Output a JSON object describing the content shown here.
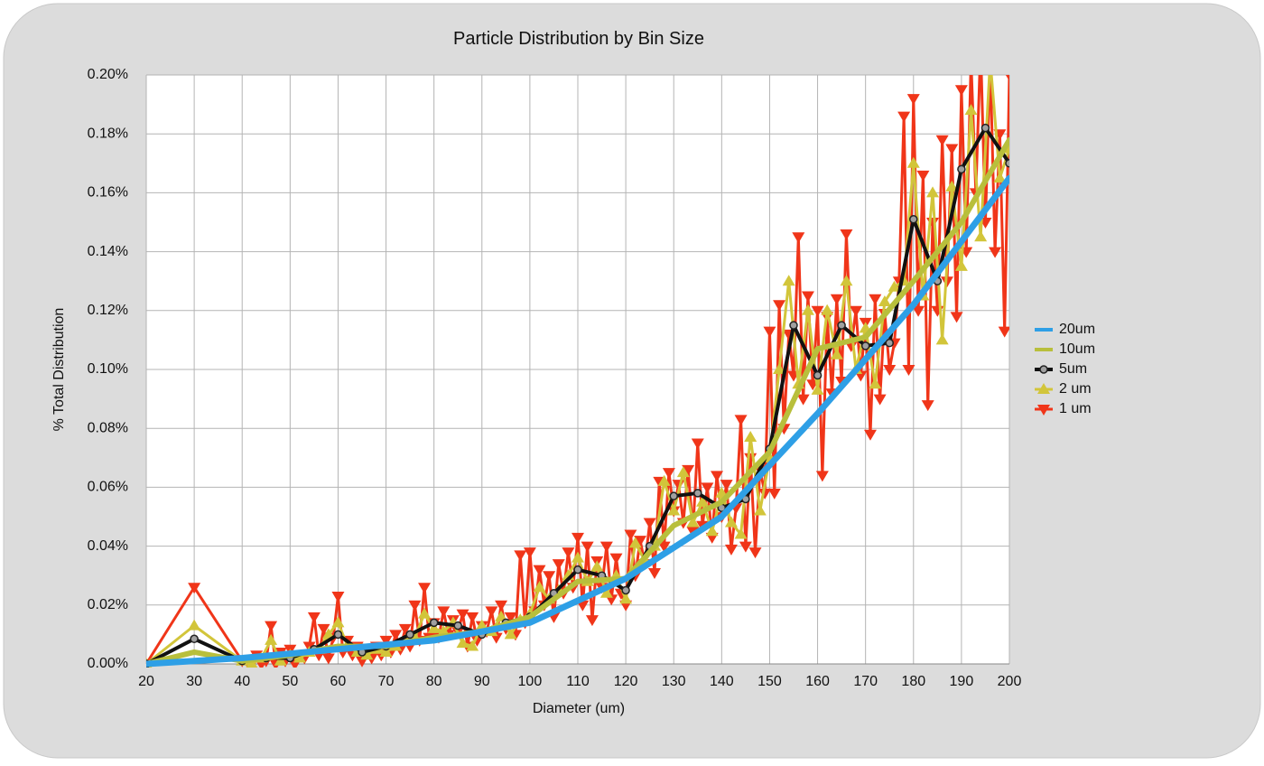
{
  "chart_data": {
    "type": "line",
    "title": "Particle Distribution by Bin Size",
    "x_label": "Diameter (um)",
    "y_label": "% Total Distribution",
    "xlim": [
      20,
      200
    ],
    "xticks": [
      20,
      30,
      40,
      50,
      60,
      70,
      80,
      90,
      100,
      110,
      120,
      130,
      140,
      150,
      160,
      170,
      180,
      190,
      200
    ],
    "ylim": [
      0,
      0.2
    ],
    "yticks": [
      {
        "value": 0,
        "label": "0.00%"
      },
      {
        "value": 0.02,
        "label": "0.02%"
      },
      {
        "value": 0.04,
        "label": "0.04%"
      },
      {
        "value": 0.06,
        "label": "0.06%"
      },
      {
        "value": 0.08,
        "label": "0.08%"
      },
      {
        "value": 0.1,
        "label": "0.10%"
      },
      {
        "value": 0.12,
        "label": "0.12%"
      },
      {
        "value": 0.14,
        "label": "0.14%"
      },
      {
        "value": 0.16,
        "label": "0.16%"
      },
      {
        "value": 0.18,
        "label": "0.18%"
      },
      {
        "value": 0.2,
        "label": "0.20%"
      }
    ],
    "grid": true,
    "legend": "right",
    "series": [
      {
        "name": "20um",
        "color": "#2e9fe6",
        "marker": "none",
        "line_width": 7,
        "x": [
          20,
          40,
          60,
          80,
          100,
          120,
          140,
          160,
          180,
          200
        ],
        "values": [
          0,
          0.002,
          0.005,
          0.008,
          0.014,
          0.029,
          0.05,
          0.085,
          0.122,
          0.165
        ]
      },
      {
        "name": "10um",
        "color": "#b8bf3c",
        "marker": "none",
        "line_width": 6,
        "x": [
          20,
          30,
          40,
          50,
          60,
          70,
          80,
          90,
          100,
          110,
          120,
          130,
          140,
          150,
          160,
          170,
          180,
          190,
          200
        ],
        "values": [
          0,
          0.004,
          0.001,
          0.003,
          0.006,
          0.006,
          0.009,
          0.011,
          0.016,
          0.028,
          0.029,
          0.047,
          0.055,
          0.072,
          0.107,
          0.111,
          0.13,
          0.15,
          0.178
        ]
      },
      {
        "name": "5um",
        "color": "#111111",
        "marker": "circle",
        "line_width": 4,
        "x": [
          20,
          30,
          40,
          45,
          50,
          55,
          60,
          65,
          70,
          75,
          80,
          85,
          90,
          95,
          100,
          105,
          110,
          115,
          120,
          125,
          130,
          135,
          140,
          145,
          150,
          155,
          160,
          165,
          170,
          175,
          180,
          185,
          190,
          195,
          200
        ],
        "values": [
          0,
          0.0085,
          0.001,
          0.002,
          0.002,
          0.005,
          0.01,
          0.004,
          0.006,
          0.01,
          0.014,
          0.013,
          0.01,
          0.014,
          0.016,
          0.024,
          0.032,
          0.03,
          0.025,
          0.04,
          0.057,
          0.058,
          0.053,
          0.056,
          0.073,
          0.115,
          0.098,
          0.115,
          0.108,
          0.109,
          0.151,
          0.13,
          0.168,
          0.182,
          0.17
        ]
      },
      {
        "name": "2 um",
        "color": "#d2c53a",
        "marker": "triangle-up",
        "line_width": 3,
        "x": [
          20,
          30,
          40,
          42,
          44,
          46,
          48,
          50,
          52,
          54,
          56,
          58,
          60,
          62,
          64,
          66,
          68,
          70,
          72,
          74,
          76,
          78,
          80,
          82,
          84,
          86,
          88,
          90,
          92,
          94,
          96,
          98,
          100,
          102,
          104,
          106,
          108,
          110,
          112,
          114,
          116,
          118,
          120,
          122,
          124,
          126,
          128,
          130,
          132,
          134,
          136,
          138,
          140,
          142,
          144,
          146,
          148,
          150,
          152,
          154,
          156,
          158,
          160,
          162,
          164,
          166,
          168,
          170,
          172,
          174,
          176,
          178,
          180,
          182,
          184,
          186,
          188,
          190,
          192,
          194,
          196,
          198,
          200
        ],
        "values": [
          0,
          0.013,
          0.001,
          0,
          0.002,
          0.008,
          0.001,
          0.003,
          0.002,
          0.004,
          0.005,
          0.01,
          0.014,
          0.006,
          0.004,
          0.003,
          0.005,
          0.004,
          0.006,
          0.008,
          0.009,
          0.017,
          0.012,
          0.011,
          0.014,
          0.007,
          0.006,
          0.013,
          0.011,
          0.016,
          0.01,
          0.015,
          0.017,
          0.026,
          0.022,
          0.025,
          0.03,
          0.036,
          0.028,
          0.033,
          0.024,
          0.03,
          0.022,
          0.041,
          0.035,
          0.04,
          0.062,
          0.052,
          0.065,
          0.048,
          0.055,
          0.045,
          0.058,
          0.048,
          0.044,
          0.077,
          0.052,
          0.07,
          0.1,
          0.13,
          0.095,
          0.12,
          0.093,
          0.12,
          0.105,
          0.13,
          0.1,
          0.114,
          0.095,
          0.123,
          0.128,
          0.13,
          0.17,
          0.125,
          0.16,
          0.11,
          0.162,
          0.135,
          0.188,
          0.145,
          0.205,
          0.165,
          0.175
        ]
      },
      {
        "name": "1 um",
        "color": "#f03519",
        "marker": "triangle-down",
        "line_width": 3,
        "x": [
          20,
          30,
          40,
          41,
          42,
          43,
          44,
          45,
          46,
          47,
          48,
          49,
          50,
          51,
          52,
          53,
          54,
          55,
          56,
          57,
          58,
          59,
          60,
          61,
          62,
          63,
          64,
          65,
          66,
          67,
          68,
          69,
          70,
          71,
          72,
          73,
          74,
          75,
          76,
          77,
          78,
          79,
          80,
          81,
          82,
          83,
          84,
          85,
          86,
          87,
          88,
          89,
          90,
          91,
          92,
          93,
          94,
          95,
          96,
          97,
          98,
          99,
          100,
          101,
          102,
          103,
          104,
          105,
          106,
          107,
          108,
          109,
          110,
          111,
          112,
          113,
          114,
          115,
          116,
          117,
          118,
          119,
          120,
          121,
          122,
          123,
          124,
          125,
          126,
          127,
          128,
          129,
          130,
          131,
          132,
          133,
          134,
          135,
          136,
          137,
          138,
          139,
          140,
          141,
          142,
          143,
          144,
          145,
          146,
          147,
          148,
          149,
          150,
          151,
          152,
          153,
          154,
          155,
          156,
          157,
          158,
          159,
          160,
          161,
          162,
          163,
          164,
          165,
          166,
          167,
          168,
          169,
          170,
          171,
          172,
          173,
          174,
          175,
          176,
          177,
          178,
          179,
          180,
          181,
          182,
          183,
          184,
          185,
          186,
          187,
          188,
          189,
          190,
          191,
          192,
          193,
          194,
          195,
          196,
          197,
          198,
          199,
          200
        ],
        "values": [
          0,
          0.026,
          0.001,
          0.001,
          0,
          0.003,
          0,
          0.001,
          0.013,
          0,
          0.004,
          0.001,
          0.005,
          0,
          0.003,
          0.002,
          0.006,
          0.016,
          0.003,
          0.012,
          0.002,
          0.009,
          0.023,
          0.004,
          0.008,
          0.003,
          0.006,
          0.001,
          0.005,
          0.002,
          0.006,
          0.003,
          0.008,
          0.004,
          0.01,
          0.005,
          0.012,
          0.006,
          0.02,
          0.008,
          0.026,
          0.009,
          0.014,
          0.009,
          0.018,
          0.01,
          0.015,
          0.011,
          0.017,
          0.006,
          0.016,
          0.008,
          0.013,
          0.011,
          0.018,
          0.009,
          0.02,
          0.012,
          0.016,
          0.01,
          0.037,
          0.014,
          0.038,
          0.018,
          0.032,
          0.02,
          0.03,
          0.016,
          0.034,
          0.024,
          0.038,
          0.026,
          0.043,
          0.02,
          0.04,
          0.015,
          0.035,
          0.026,
          0.04,
          0.022,
          0.036,
          0.024,
          0.02,
          0.044,
          0.03,
          0.042,
          0.034,
          0.048,
          0.031,
          0.062,
          0.04,
          0.065,
          0.052,
          0.061,
          0.048,
          0.066,
          0.045,
          0.075,
          0.047,
          0.06,
          0.043,
          0.064,
          0.05,
          0.061,
          0.039,
          0.053,
          0.083,
          0.04,
          0.07,
          0.038,
          0.066,
          0.058,
          0.113,
          0.058,
          0.122,
          0.08,
          0.112,
          0.098,
          0.145,
          0.09,
          0.125,
          0.095,
          0.12,
          0.064,
          0.118,
          0.092,
          0.124,
          0.096,
          0.146,
          0.108,
          0.12,
          0.098,
          0.116,
          0.078,
          0.124,
          0.09,
          0.119,
          0.1,
          0.109,
          0.13,
          0.186,
          0.1,
          0.192,
          0.12,
          0.166,
          0.088,
          0.15,
          0.12,
          0.178,
          0.13,
          0.175,
          0.118,
          0.195,
          0.14,
          0.205,
          0.16,
          0.21,
          0.15,
          0.205,
          0.14,
          0.18,
          0.113,
          0.2
        ]
      }
    ]
  }
}
